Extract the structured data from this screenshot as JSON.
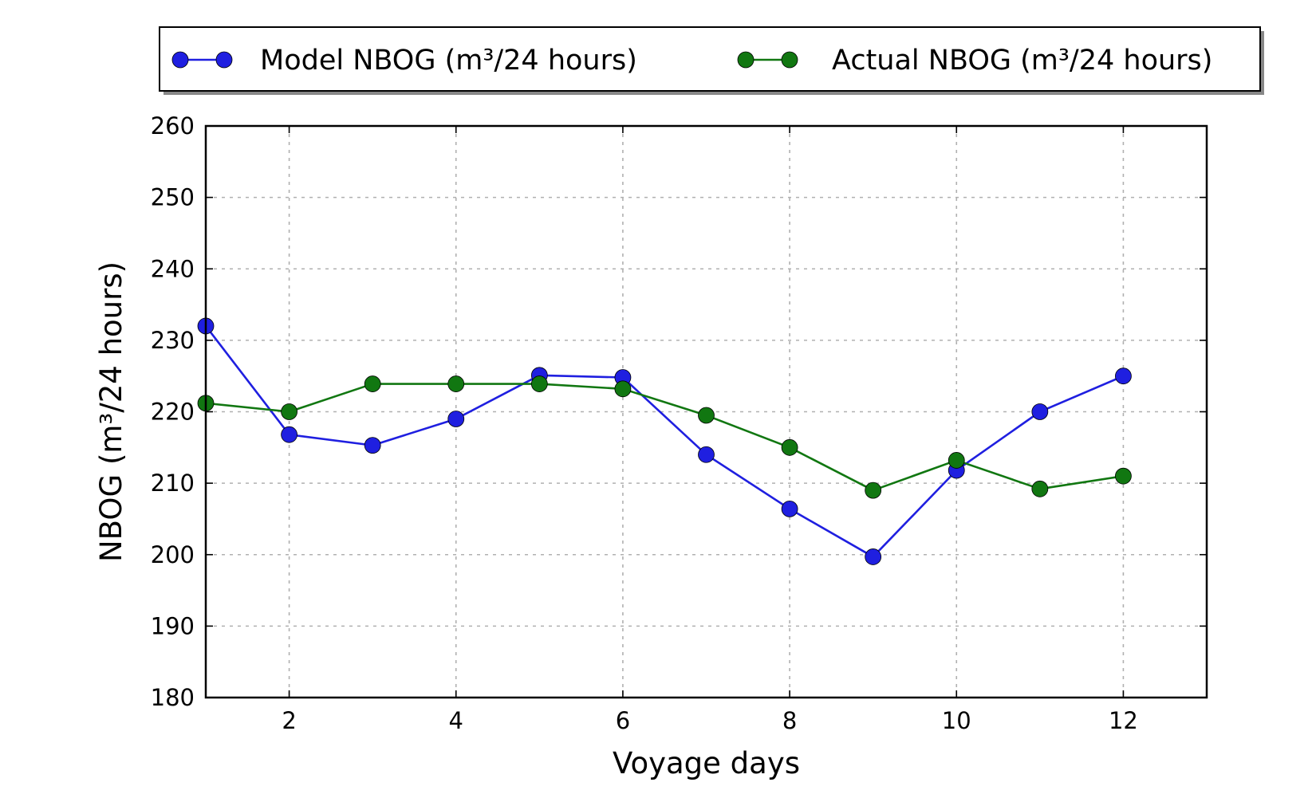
{
  "chart_data": {
    "type": "line",
    "title": "",
    "xlabel": "Voyage days",
    "ylabel": "NBOG (m³/24 hours)",
    "xlim": [
      1,
      13
    ],
    "ylim": [
      180,
      260
    ],
    "xticks": [
      2,
      4,
      6,
      8,
      10,
      12
    ],
    "yticks": [
      180,
      190,
      200,
      210,
      220,
      230,
      240,
      250,
      260
    ],
    "grid": true,
    "legend_position": "top",
    "x": [
      1,
      2,
      3,
      4,
      5,
      6,
      7,
      8,
      9,
      10,
      11,
      12
    ],
    "series": [
      {
        "name": "Model NBOG (m³/24 hours)",
        "color": "#1f1fe0",
        "values": [
          232,
          216.8,
          215.3,
          219,
          225.1,
          224.8,
          214,
          206.4,
          199.7,
          211.8,
          220,
          225
        ]
      },
      {
        "name": "Actual NBOG (m³/24 hours)",
        "color": "#117711",
        "values": [
          221.2,
          220,
          223.9,
          223.9,
          223.9,
          223.2,
          219.5,
          215,
          209,
          213.2,
          209.2,
          211
        ]
      }
    ]
  }
}
